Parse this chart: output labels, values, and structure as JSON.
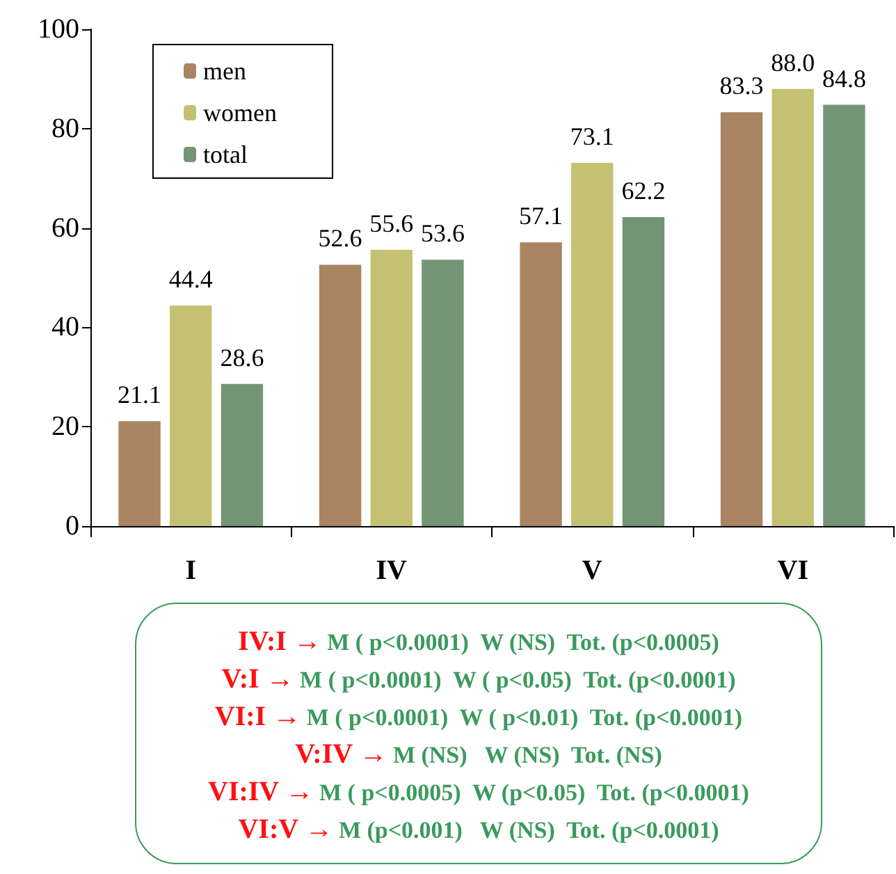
{
  "chart_data": {
    "type": "bar",
    "categories": [
      "I",
      "IV",
      "V",
      "VI"
    ],
    "series": [
      {
        "name": "men",
        "color": "#a88462",
        "values": [
          21.1,
          52.6,
          57.1,
          83.3
        ],
        "value_labels": [
          "21.1",
          "52.6",
          "57.1",
          "83.3"
        ]
      },
      {
        "name": "women",
        "color": "#c4c272",
        "values": [
          44.4,
          55.6,
          73.1,
          88.0
        ],
        "value_labels": [
          "44.4",
          "55.6",
          "73.1",
          "88.0"
        ]
      },
      {
        "name": "total",
        "color": "#739575",
        "values": [
          28.6,
          53.6,
          62.2,
          84.8
        ],
        "value_labels": [
          "28.6",
          "53.6",
          "62.2",
          "84.8"
        ]
      }
    ],
    "ylim": [
      0,
      100
    ],
    "yticks": [
      0,
      20,
      40,
      60,
      80,
      100
    ],
    "grid": false,
    "legend": "top left",
    "annotations": [
      "IV:I → M ( p<0.0001)  W (NS)  Tot. (p<0.0005)",
      "V:I → M ( p<0.0001)  W ( p<0.05)  Tot. (p<0.0001)",
      "VI:I → M ( p<0.0001)  W ( p<0.01)  Tot. (p<0.0001)",
      "V:IV → M (NS)   W (NS)  Tot. (NS)",
      "VI:IV → M ( p<0.0005)  W (p<0.05)  Tot. (p<0.0001)",
      "VI:V → M (p<0.001)   W (NS)  Tot. (p<0.0001)"
    ]
  }
}
